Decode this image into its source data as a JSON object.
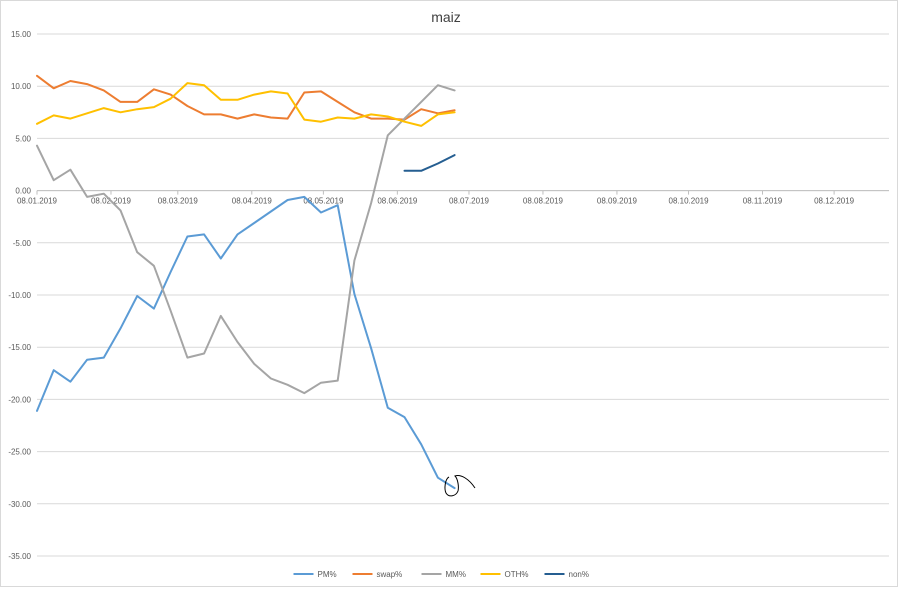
{
  "chart_data": {
    "type": "line",
    "title": "maiz",
    "xlabel": "",
    "ylabel": "",
    "ylim": [
      -35,
      15
    ],
    "y_ticks": [
      "15.00",
      "10.00",
      "5.00",
      "0.00",
      "-5.00",
      "-10.00",
      "-15.00",
      "-20.00",
      "-25.00",
      "-30.00",
      "-35.00"
    ],
    "y_tick_values": [
      15,
      10,
      5,
      0,
      -5,
      -10,
      -15,
      -20,
      -25,
      -30,
      -35
    ],
    "x_range": [
      "2019-01-08",
      "2019-12-31"
    ],
    "x_ticks": [
      {
        "date": "2019-01-08",
        "label": "08.01.2019"
      },
      {
        "date": "2019-02-08",
        "label": "08.02.2019"
      },
      {
        "date": "2019-03-08",
        "label": "08.03.2019"
      },
      {
        "date": "2019-04-08",
        "label": "08.04.2019"
      },
      {
        "date": "2019-05-08",
        "label": "08.05.2019"
      },
      {
        "date": "2019-06-08",
        "label": "08.06.2019"
      },
      {
        "date": "2019-07-08",
        "label": "08.07.2019"
      },
      {
        "date": "2019-08-08",
        "label": "08.08.2019"
      },
      {
        "date": "2019-09-08",
        "label": "08.09.2019"
      },
      {
        "date": "2019-10-08",
        "label": "08.10.2019"
      },
      {
        "date": "2019-11-08",
        "label": "08.11.2019"
      },
      {
        "date": "2019-12-08",
        "label": "08.12.2019"
      }
    ],
    "grid": true,
    "legend": "bottom",
    "dates": [
      "2019-01-08",
      "2019-01-15",
      "2019-01-22",
      "2019-01-29",
      "2019-02-05",
      "2019-02-12",
      "2019-02-19",
      "2019-02-26",
      "2019-03-05",
      "2019-03-12",
      "2019-03-19",
      "2019-03-26",
      "2019-04-02",
      "2019-04-09",
      "2019-04-16",
      "2019-04-23",
      "2019-04-30",
      "2019-05-07",
      "2019-05-14",
      "2019-05-21",
      "2019-05-28",
      "2019-06-04",
      "2019-06-11",
      "2019-06-18",
      "2019-06-25",
      "2019-07-02"
    ],
    "series": [
      {
        "name": "PM%",
        "color": "#5b9bd5",
        "values": [
          -21.1,
          -17.2,
          -18.3,
          -16.2,
          -16.0,
          -13.2,
          -10.1,
          -11.3,
          -7.8,
          -4.4,
          -4.2,
          -6.5,
          -4.2,
          -3.1,
          -2.0,
          -0.9,
          -0.6,
          -2.1,
          -1.4,
          -9.9,
          -15.1,
          -20.8,
          -21.7,
          -24.3,
          -27.5,
          -28.5
        ]
      },
      {
        "name": "swap%",
        "color": "#ed7d31",
        "values": [
          11.0,
          9.8,
          10.5,
          10.2,
          9.6,
          8.5,
          8.5,
          9.7,
          9.2,
          8.1,
          7.3,
          7.3,
          6.9,
          7.3,
          7.0,
          6.9,
          9.4,
          9.5,
          8.5,
          7.5,
          6.9,
          6.9,
          6.8,
          7.8,
          7.4,
          7.7
        ]
      },
      {
        "name": "MM%",
        "color": "#a5a5a5",
        "values": [
          4.3,
          1.0,
          2.0,
          -0.6,
          -0.3,
          -1.9,
          -5.9,
          -7.2,
          -11.5,
          -16.0,
          -15.6,
          -12.0,
          -14.5,
          -16.6,
          -18.0,
          -18.6,
          -19.4,
          -18.4,
          -18.2,
          -6.7,
          -1.2,
          5.3,
          6.9,
          8.5,
          10.1,
          9.6
        ]
      },
      {
        "name": "OTH%",
        "color": "#ffc000",
        "values": [
          6.4,
          7.2,
          6.9,
          7.4,
          7.9,
          7.5,
          7.8,
          8.0,
          8.8,
          10.3,
          10.1,
          8.7,
          8.7,
          9.2,
          9.5,
          9.3,
          6.8,
          6.6,
          7.0,
          6.9,
          7.3,
          7.1,
          6.6,
          6.2,
          7.3,
          7.5
        ]
      },
      {
        "name": "non%",
        "color": "#255e91",
        "values": [
          null,
          null,
          null,
          null,
          null,
          null,
          null,
          null,
          null,
          null,
          null,
          null,
          null,
          null,
          null,
          null,
          null,
          null,
          null,
          null,
          null,
          null,
          1.9,
          1.9,
          2.6,
          3.4
        ]
      }
    ]
  }
}
